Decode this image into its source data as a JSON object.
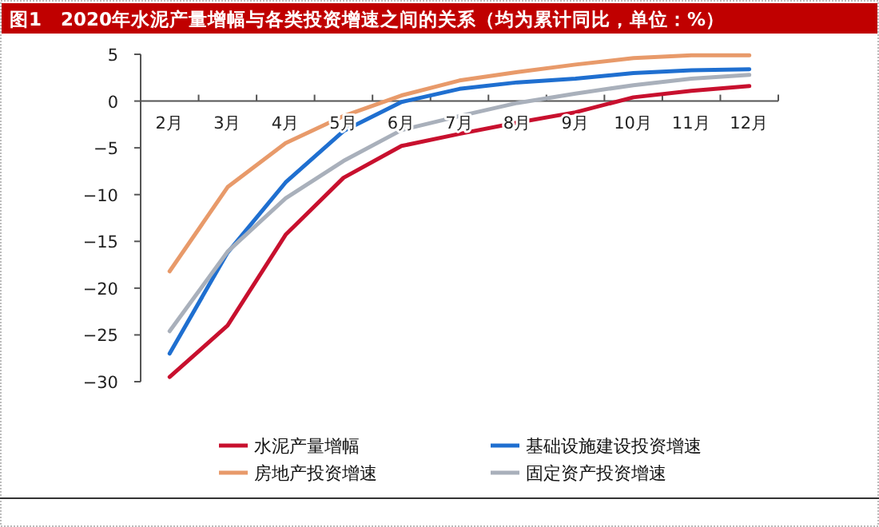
{
  "chart_data": {
    "type": "line",
    "title": "图1　2020年水泥产量增幅与各类投资增速之间的关系（均为累计同比，单位：%）",
    "categories": [
      "2月",
      "3月",
      "4月",
      "5月",
      "6月",
      "7月",
      "8月",
      "9月",
      "10月",
      "11月",
      "12月"
    ],
    "ylim": [
      -30,
      5
    ],
    "yticks": [
      -30,
      -25,
      -20,
      -15,
      -10,
      -5,
      0,
      5
    ],
    "legend": "bottom",
    "series": [
      {
        "name": "水泥产量增幅",
        "color": "#c8102e",
        "values": [
          -29.5,
          -24.0,
          -14.3,
          -8.2,
          -4.8,
          -3.5,
          -2.3,
          -1.2,
          0.4,
          1.1,
          1.6
        ]
      },
      {
        "name": "基础设施建设投资增速",
        "color": "#1f6fd0",
        "values": [
          -27.0,
          -16.2,
          -8.7,
          -3.2,
          -0.1,
          1.3,
          2.0,
          2.4,
          3.0,
          3.3,
          3.4
        ]
      },
      {
        "name": "房地产投资增速",
        "color": "#e89a6a",
        "values": [
          -18.2,
          -9.2,
          -4.5,
          -1.6,
          0.6,
          2.2,
          3.1,
          3.9,
          4.6,
          4.9,
          4.9
        ]
      },
      {
        "name": "固定资产投资增速",
        "color": "#a9b0bb",
        "values": [
          -24.6,
          -16.1,
          -10.4,
          -6.4,
          -3.1,
          -1.6,
          -0.2,
          0.8,
          1.7,
          2.4,
          2.8
        ]
      }
    ]
  }
}
